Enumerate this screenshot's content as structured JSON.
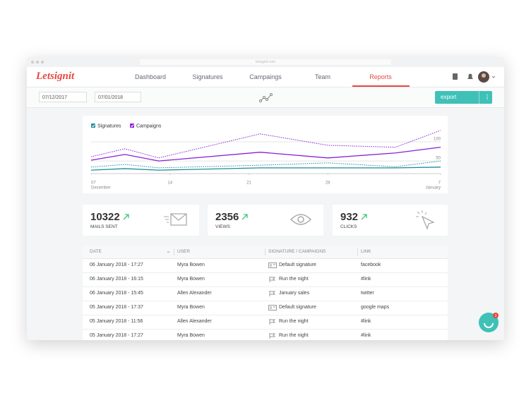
{
  "browser": {
    "url": "letsignit.com"
  },
  "nav": {
    "logo": "Letsignit",
    "tabs": [
      "Dashboard",
      "Signatures",
      "Campaings",
      "Team",
      "Reports"
    ],
    "active": 4
  },
  "toolbar": {
    "date_from": "07/12/2017",
    "date_to": "07/01/2018",
    "export": "export"
  },
  "chart_data": {
    "type": "line",
    "x": [
      0,
      3,
      6,
      15,
      21,
      27,
      31
    ],
    "xlim": [
      0,
      31
    ],
    "xticks": [
      {
        "value": 0,
        "label": "07",
        "month": "December"
      },
      {
        "value": 7,
        "label": "14"
      },
      {
        "value": 14,
        "label": "21"
      },
      {
        "value": 21,
        "label": "28"
      },
      {
        "value": 31,
        "label": "7",
        "month": "January"
      }
    ],
    "ylim": [
      17,
      130
    ],
    "yticks": [
      50,
      100
    ],
    "grid": true,
    "series": [
      {
        "name": "Signatures",
        "color": "#1d8a9c",
        "values": [
          26,
          30,
          26,
          32,
          32,
          32,
          34
        ],
        "previous_values": [
          34,
          41,
          32,
          39,
          45,
          35,
          50
        ]
      },
      {
        "name": "Campaigns",
        "color": "#8a1fd6",
        "values": [
          52,
          67,
          50,
          73,
          58,
          71,
          86
        ],
        "previous_values": [
          61,
          82,
          58,
          121,
          91,
          86,
          130
        ]
      }
    ]
  },
  "stats": [
    {
      "value": 10322,
      "label": "MAILS SENT",
      "icon": "mail"
    },
    {
      "value": 2356,
      "label": "VIEWS",
      "icon": "eye"
    },
    {
      "value": 932,
      "label": "CLICKS",
      "icon": "click"
    }
  ],
  "table": {
    "columns": [
      "DATE",
      "USER",
      "SIGNATURE / CAMPAIGNS",
      "LINK"
    ],
    "rows": [
      {
        "date": "06 January 2018 - 17:27",
        "user": "Myra Bowen",
        "item": "Default signature",
        "link": "facebook",
        "icon": "card"
      },
      {
        "date": "06 January 2018 - 16:15",
        "user": "Myra Bowen",
        "item": "Run the night",
        "link": "#link",
        "icon": "flag"
      },
      {
        "date": "06 January 2018 - 15:45",
        "user": "Allen Alexander",
        "item": "January sales",
        "link": "twitter",
        "icon": "flag"
      },
      {
        "date": "05 January 2018 - 17:37",
        "user": "Myra Bowen",
        "item": "Default signature",
        "link": "google maps",
        "icon": "card"
      },
      {
        "date": "05 January 2018 - 11:56",
        "user": "Allen Alexander",
        "item": "Run the night",
        "link": "#link",
        "icon": "flag"
      },
      {
        "date": "05 January 2018 - 17:27",
        "user": "Myra Bowen",
        "item": "Run the night",
        "link": "#link",
        "icon": "flag"
      }
    ]
  },
  "chat": {
    "badge": 3
  }
}
